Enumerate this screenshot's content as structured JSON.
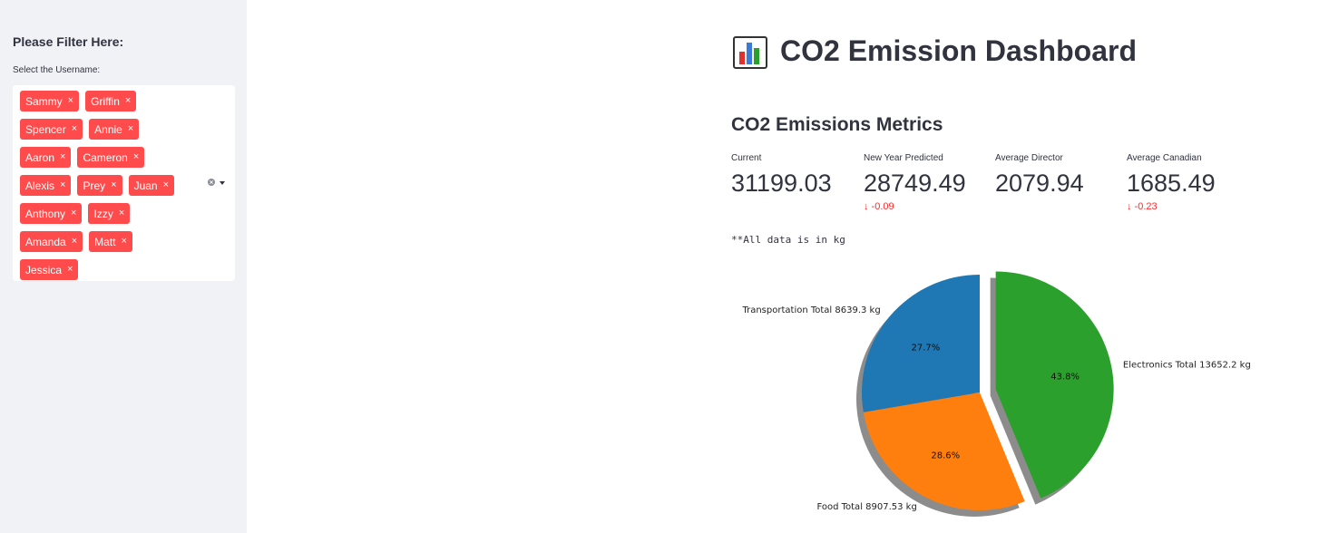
{
  "sidebar": {
    "title": "Please Filter Here:",
    "multiselect": {
      "label": "Select the Username:",
      "selected": [
        "Sammy",
        "Griffin",
        "Spencer",
        "Annie",
        "Aaron",
        "Cameron",
        "Alexis",
        "Prey",
        "Juan",
        "Anthony",
        "Izzy",
        "Amanda",
        "Matt",
        "Jessica"
      ],
      "remove_glyph": "×"
    }
  },
  "main": {
    "title": "CO2 Emission Dashboard",
    "title_icon": "bar-chart-icon",
    "section_title": "CO2 Emissions Metrics",
    "metrics": [
      {
        "label": "Current",
        "value": "31199.03",
        "delta": ""
      },
      {
        "label": "New Year Predicted",
        "value": "28749.49",
        "delta": "↓ -0.09"
      },
      {
        "label": "Average Director",
        "value": "2079.94",
        "delta": ""
      },
      {
        "label": "Average Canadian",
        "value": "1685.49",
        "delta": "↓ -0.23"
      }
    ],
    "note": "**All data is in kg"
  },
  "colors": {
    "accent": "#ff4b4b",
    "sidebar_bg": "#f0f2f6",
    "delta_negative": "#ff2b2b"
  },
  "chart_data": {
    "type": "pie",
    "slices": [
      {
        "label": "Transportation Total 8639.3 kg",
        "value": 8639.3,
        "pct_label": "27.7%",
        "color": "#1f77b4",
        "exploded": false
      },
      {
        "label": "Food Total 8907.53 kg",
        "value": 8907.53,
        "pct_label": "28.6%",
        "color": "#ff7f0e",
        "exploded": false
      },
      {
        "label": "Electronics Total 13652.2 kg",
        "value": 13652.2,
        "pct_label": "43.8%",
        "color": "#2ca02c",
        "exploded": true
      }
    ],
    "shadow": true
  }
}
